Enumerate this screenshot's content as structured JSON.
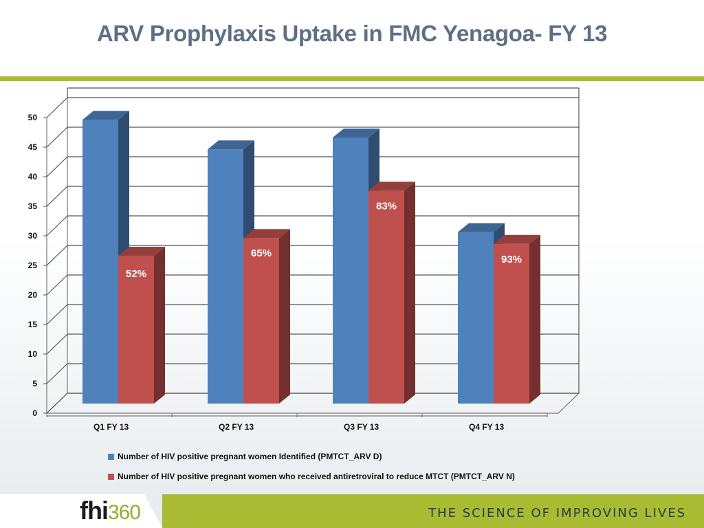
{
  "title": "ARV Prophylaxis Uptake in FMC Yenagoa- FY 13",
  "chart_data": {
    "type": "bar",
    "categories": [
      "Q1 FY 13",
      "Q2 FY 13",
      "Q3 FY 13",
      "Q4 FY 13"
    ],
    "y_ticks": [
      0,
      5,
      10,
      15,
      20,
      25,
      30,
      35,
      40,
      45,
      50
    ],
    "ylim": [
      0,
      50
    ],
    "grid": true,
    "legend_position": "bottom",
    "series": [
      {
        "name": "Number of HIV positive pregnant women Identified (PMTCT_ARV D)",
        "color": "#4f81bd",
        "values": [
          48,
          43,
          45,
          29
        ]
      },
      {
        "name": "Number of HIV positive pregnant women who received antiretroviral to reduce MTCT (PMTCT_ARV N)",
        "color": "#c0504d",
        "values": [
          25,
          28,
          36,
          27
        ],
        "data_labels": [
          "52%",
          "65%",
          "83%",
          "93%"
        ]
      }
    ]
  },
  "footer": {
    "logo_text": "fhi",
    "logo_number": "360",
    "tagline": "THE SCIENCE OF IMPROVING LIVES",
    "bar_color": "#a9bb32"
  }
}
